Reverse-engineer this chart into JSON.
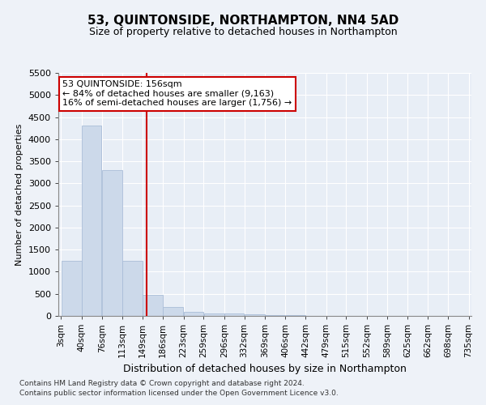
{
  "title": "53, QUINTONSIDE, NORTHAMPTON, NN4 5AD",
  "subtitle": "Size of property relative to detached houses in Northampton",
  "xlabel": "Distribution of detached houses by size in Northampton",
  "ylabel": "Number of detached properties",
  "footnote1": "Contains HM Land Registry data © Crown copyright and database right 2024.",
  "footnote2": "Contains public sector information licensed under the Open Government Licence v3.0.",
  "annotation_title": "53 QUINTONSIDE: 156sqm",
  "annotation_line1": "← 84% of detached houses are smaller (9,163)",
  "annotation_line2": "16% of semi-detached houses are larger (1,756) →",
  "bar_color": "#ccd9ea",
  "bar_edge_color": "#aabdd8",
  "vline_color": "#cc0000",
  "vline_x": 156,
  "bin_edges": [
    3,
    40,
    76,
    113,
    149,
    186,
    223,
    259,
    296,
    332,
    369,
    406,
    442,
    479,
    515,
    552,
    589,
    625,
    662,
    698,
    735
  ],
  "bar_heights": [
    1250,
    4300,
    3300,
    1250,
    475,
    200,
    100,
    60,
    50,
    30,
    20,
    10,
    5,
    3,
    2,
    1,
    1,
    0,
    0,
    0
  ],
  "ylim": [
    0,
    5500
  ],
  "yticks": [
    0,
    500,
    1000,
    1500,
    2000,
    2500,
    3000,
    3500,
    4000,
    4500,
    5000,
    5500
  ],
  "background_color": "#eef2f8",
  "plot_bg_color": "#e8eef6",
  "grid_color": "#ffffff",
  "title_fontsize": 11,
  "subtitle_fontsize": 9,
  "ylabel_fontsize": 8,
  "xlabel_fontsize": 9,
  "annotation_box_color": "#ffffff",
  "annotation_border_color": "#cc0000",
  "annotation_fontsize": 8,
  "tick_fontsize": 7.5,
  "ytick_fontsize": 8,
  "footnote_fontsize": 6.5
}
